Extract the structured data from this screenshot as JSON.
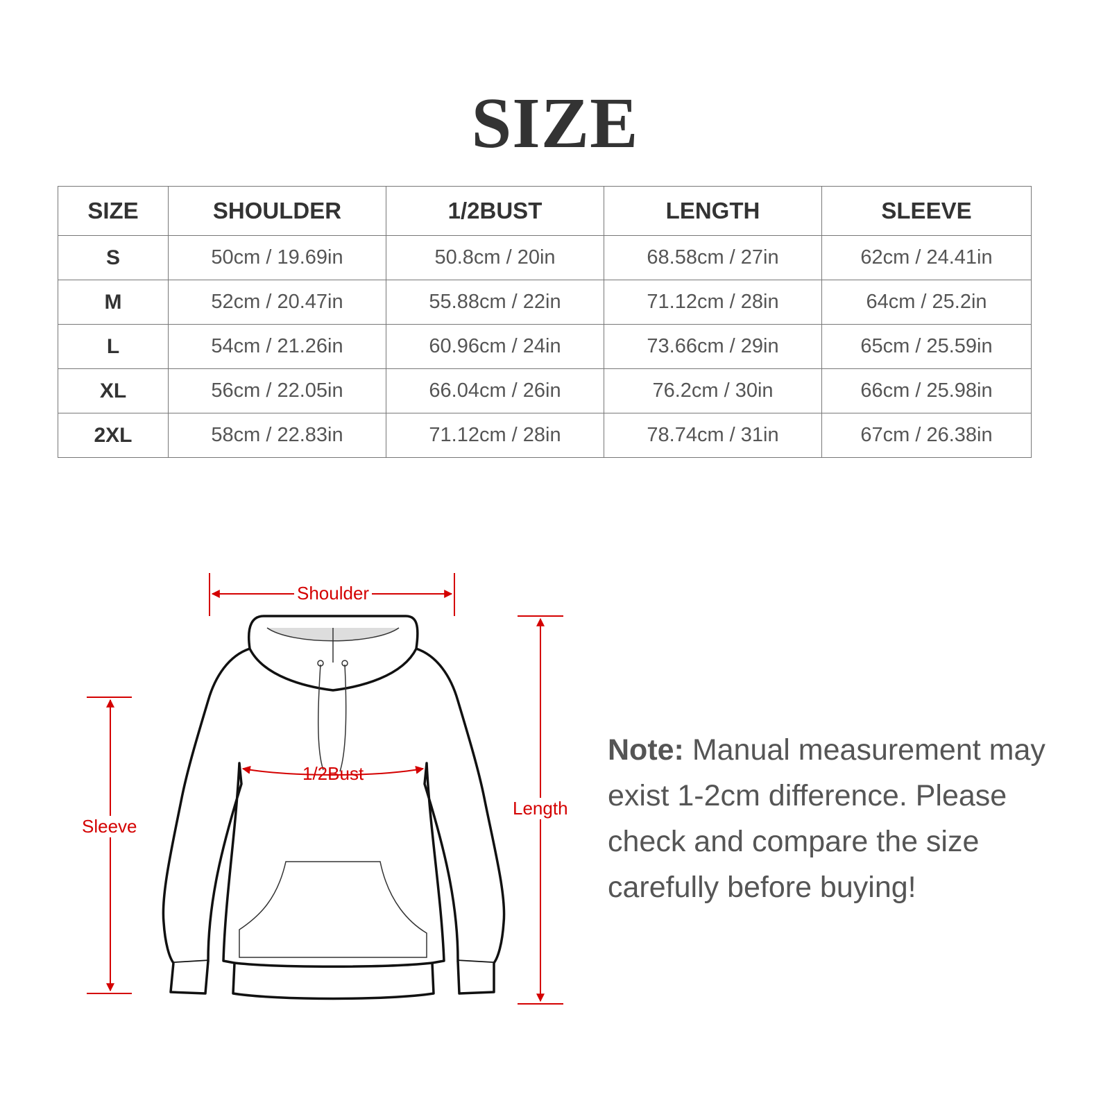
{
  "title": "SIZE",
  "table": {
    "headers": [
      "SIZE",
      "SHOULDER",
      "1/2BUST",
      "LENGTH",
      "SLEEVE"
    ],
    "rows": [
      [
        "S",
        "50cm / 19.69in",
        "50.8cm / 20in",
        "68.58cm / 27in",
        "62cm / 24.41in"
      ],
      [
        "M",
        "52cm / 20.47in",
        "55.88cm / 22in",
        "71.12cm / 28in",
        "64cm / 25.2in"
      ],
      [
        "L",
        "54cm / 21.26in",
        "60.96cm / 24in",
        "73.66cm / 29in",
        "65cm / 25.59in"
      ],
      [
        "XL",
        "56cm / 22.05in",
        "66.04cm / 26in",
        "76.2cm / 30in",
        "66cm / 25.98in"
      ],
      [
        "2XL",
        "58cm / 22.83in",
        "71.12cm / 28in",
        "78.74cm / 31in",
        "67cm / 26.38in"
      ]
    ]
  },
  "diagram": {
    "shoulder": "Shoulder",
    "bust": "1/2Bust",
    "sleeve": "Sleeve",
    "length": "Length",
    "accent_color": "#d40000"
  },
  "note": {
    "label": "Note:",
    "text": " Manual measurement may exist 1-2cm difference. Please check and compare the size carefully before buying!"
  }
}
